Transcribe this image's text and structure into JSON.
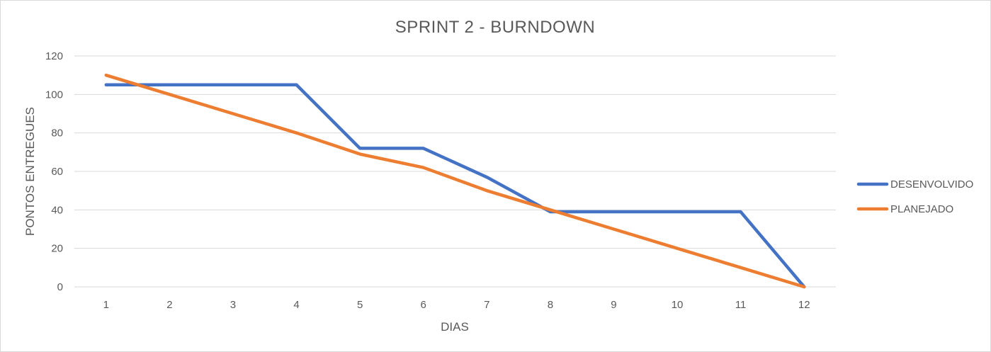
{
  "chart_data": {
    "type": "line",
    "title": "SPRINT 2 - BURNDOWN",
    "xlabel": "DIAS",
    "ylabel": "PONTOS ENTREGUES",
    "categories": [
      "1",
      "2",
      "3",
      "4",
      "5",
      "6",
      "7",
      "8",
      "9",
      "10",
      "11",
      "12"
    ],
    "ylim": [
      0,
      120
    ],
    "yticks": [
      "0",
      "20",
      "40",
      "60",
      "80",
      "100",
      "120"
    ],
    "grid": true,
    "legend_position": "right",
    "series": [
      {
        "name": "DESENVOLVIDO",
        "color": "#4472c4",
        "values": [
          105,
          105,
          105,
          105,
          72,
          72,
          57,
          39,
          39,
          39,
          39,
          0
        ]
      },
      {
        "name": "PLANEJADO",
        "color": "#ed7d31",
        "values": [
          110,
          100,
          90,
          80,
          69,
          62,
          50,
          40,
          30,
          20,
          10,
          0
        ]
      }
    ]
  }
}
